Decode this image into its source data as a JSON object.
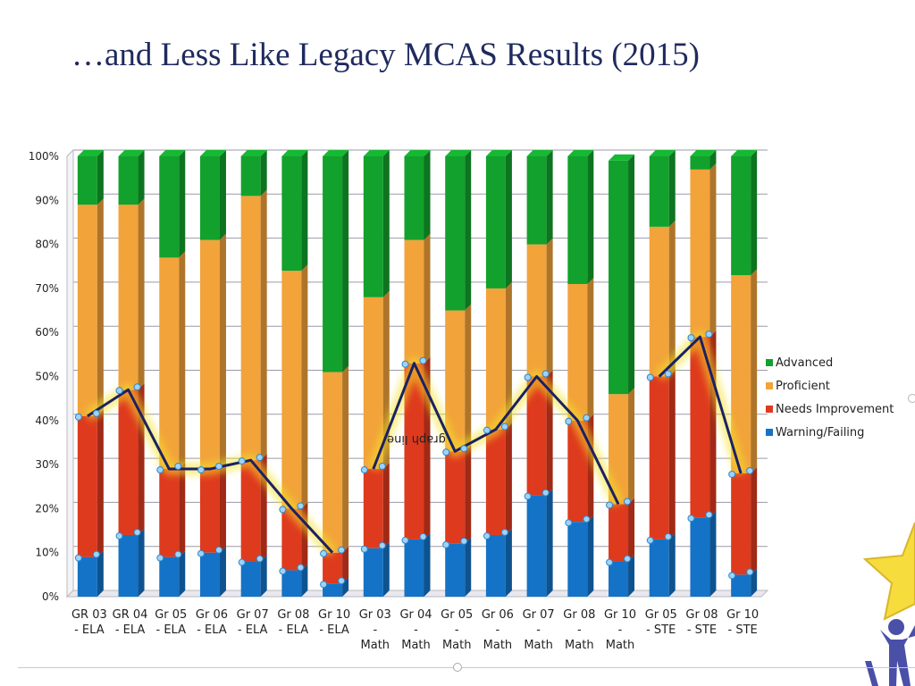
{
  "slide": {
    "title": "…and Less Like Legacy MCAS Results (2015)"
  },
  "colors": {
    "Advanced": "#12a12c",
    "Proficient": "#f2a33a",
    "Needs Improvement": "#de3a1e",
    "Warning/Failing": "#1473c6",
    "trend_line": "#1b2163"
  },
  "chart_data": {
    "type": "bar",
    "stacked": true,
    "normalized": true,
    "title": "",
    "xlabel": "",
    "ylabel": "",
    "ylim": [
      0,
      100
    ],
    "yticks": [
      "0%",
      "10%",
      "20%",
      "30%",
      "40%",
      "50%",
      "60%",
      "70%",
      "80%",
      "90%",
      "100%"
    ],
    "legend_position": "right",
    "categories": [
      "GR 03 - ELA",
      "GR 04 - ELA",
      "Gr 05 - ELA",
      "Gr 06 - ELA",
      "Gr 07 - ELA",
      "Gr 08 - ELA",
      "Gr 10 - ELA",
      "Gr 03 - Math",
      "Gr 04 - Math",
      "Gr 05 - Math",
      "Gr 06 - Math",
      "Gr 07 - Math",
      "Gr 08 - Math",
      "Gr 10 - Math",
      "Gr 05 - STE",
      "Gr 08 - STE",
      "Gr 10 - STE"
    ],
    "category_label_lines": [
      [
        "GR 03",
        "- ELA"
      ],
      [
        "GR 04",
        "- ELA"
      ],
      [
        "Gr 05",
        "- ELA"
      ],
      [
        "Gr 06",
        "- ELA"
      ],
      [
        "Gr 07",
        "- ELA"
      ],
      [
        "Gr 08",
        "- ELA"
      ],
      [
        "Gr 10",
        "- ELA"
      ],
      [
        "Gr 03",
        "-",
        "Math"
      ],
      [
        "Gr 04",
        "-",
        "Math"
      ],
      [
        "Gr 05",
        "-",
        "Math"
      ],
      [
        "Gr 06",
        "-",
        "Math"
      ],
      [
        "Gr 07",
        "-",
        "Math"
      ],
      [
        "Gr 08",
        "-",
        "Math"
      ],
      [
        "Gr 10",
        "-",
        "Math"
      ],
      [
        "Gr 05",
        "- STE"
      ],
      [
        "Gr 08",
        "- STE"
      ],
      [
        "Gr 10",
        "- STE"
      ]
    ],
    "series": [
      {
        "name": "Warning/Failing",
        "values": [
          9,
          14,
          9,
          10,
          8,
          6,
          3,
          11,
          13,
          12,
          14,
          23,
          17,
          8,
          13,
          18,
          5
        ]
      },
      {
        "name": "Needs Improvement",
        "values": [
          32,
          33,
          20,
          19,
          23,
          14,
          7,
          18,
          40,
          21,
          24,
          27,
          23,
          13,
          37,
          41,
          23
        ]
      },
      {
        "name": "Proficient",
        "values": [
          48,
          42,
          48,
          52,
          60,
          54,
          41,
          39,
          28,
          32,
          32,
          30,
          31,
          25,
          34,
          38,
          45
        ]
      },
      {
        "name": "Advanced",
        "values": [
          11,
          11,
          23,
          19,
          9,
          26,
          49,
          32,
          19,
          35,
          30,
          20,
          29,
          53,
          16,
          3,
          27
        ]
      }
    ],
    "legend": [
      "Advanced",
      "Proficient",
      "Needs Improvement",
      "Warning/Failing"
    ],
    "annotations": [
      {
        "text": "graph line",
        "rotated": 180
      },
      {
        "trend_line": "combined Warning/Failing + Needs Improvement share, connected within each subject group"
      }
    ],
    "trend_groups": [
      [
        0,
        6
      ],
      [
        7,
        13
      ],
      [
        14,
        16
      ]
    ]
  }
}
